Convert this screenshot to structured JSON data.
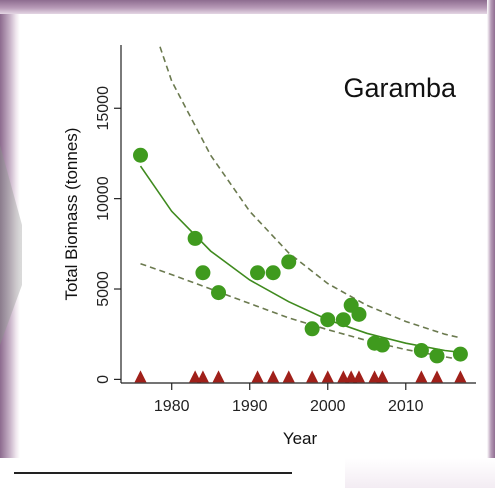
{
  "chart_data": {
    "type": "scatter",
    "title": "Garamba",
    "xlabel": "Year",
    "ylabel": "Total Biomass (tonnes)",
    "xlim": [
      1973.5,
      2019
    ],
    "ylim": [
      -200,
      18500
    ],
    "xticks": [
      1980,
      1990,
      2000,
      2010
    ],
    "yticks": [
      0,
      5000,
      10000,
      15000
    ],
    "grid": false,
    "colors": {
      "points": "#3f9a1e",
      "fit": "#3f8a1e",
      "ci": "#6b7a4f",
      "triangles": "#a0201a"
    },
    "series": [
      {
        "marker": "circle",
        "points": [
          {
            "x": 1976,
            "y": 12400
          },
          {
            "x": 1983,
            "y": 7800
          },
          {
            "x": 1984,
            "y": 5900
          },
          {
            "x": 1986,
            "y": 4800
          },
          {
            "x": 1991,
            "y": 5900
          },
          {
            "x": 1993,
            "y": 5900
          },
          {
            "x": 1995,
            "y": 6500
          },
          {
            "x": 1998,
            "y": 2800
          },
          {
            "x": 2000,
            "y": 3300
          },
          {
            "x": 2002,
            "y": 3300
          },
          {
            "x": 2003,
            "y": 4100
          },
          {
            "x": 2004,
            "y": 3600
          },
          {
            "x": 2006,
            "y": 2000
          },
          {
            "x": 2007,
            "y": 1900
          },
          {
            "x": 2012,
            "y": 1600
          },
          {
            "x": 2014,
            "y": 1300
          },
          {
            "x": 2017,
            "y": 1400
          }
        ]
      },
      {
        "marker": "triangle",
        "points": [
          {
            "x": 1976,
            "y": 0
          },
          {
            "x": 1983,
            "y": 0
          },
          {
            "x": 1984,
            "y": 0
          },
          {
            "x": 1986,
            "y": 0
          },
          {
            "x": 1991,
            "y": 0
          },
          {
            "x": 1993,
            "y": 0
          },
          {
            "x": 1995,
            "y": 0
          },
          {
            "x": 1998,
            "y": 0
          },
          {
            "x": 2000,
            "y": 0
          },
          {
            "x": 2002,
            "y": 0
          },
          {
            "x": 2003,
            "y": 0
          },
          {
            "x": 2004,
            "y": 0
          },
          {
            "x": 2006,
            "y": 0
          },
          {
            "x": 2007,
            "y": 0
          },
          {
            "x": 2012,
            "y": 0
          },
          {
            "x": 2014,
            "y": 0
          },
          {
            "x": 2017,
            "y": 0
          }
        ]
      }
    ],
    "fit": {
      "style": "solid",
      "x": [
        1976,
        1980,
        1985,
        1990,
        1995,
        2000,
        2005,
        2010,
        2015,
        2017
      ],
      "y": [
        11800,
        9300,
        7100,
        5500,
        4300,
        3300,
        2550,
        2000,
        1600,
        1500
      ]
    },
    "ci_upper": {
      "style": "dashed",
      "x": [
        1978.5,
        1980,
        1985,
        1990,
        1995,
        2000,
        2005,
        2010,
        2015,
        2017
      ],
      "y": [
        18400,
        16500,
        12400,
        9300,
        7000,
        5300,
        4100,
        3200,
        2500,
        2300
      ]
    },
    "ci_lower": {
      "style": "dashed",
      "x": [
        1976,
        1980,
        1985,
        1990,
        1995,
        2000,
        2005,
        2010,
        2015,
        2017
      ],
      "y": [
        6400,
        5800,
        5000,
        4200,
        3400,
        2750,
        2150,
        1650,
        1250,
        1100
      ]
    }
  }
}
